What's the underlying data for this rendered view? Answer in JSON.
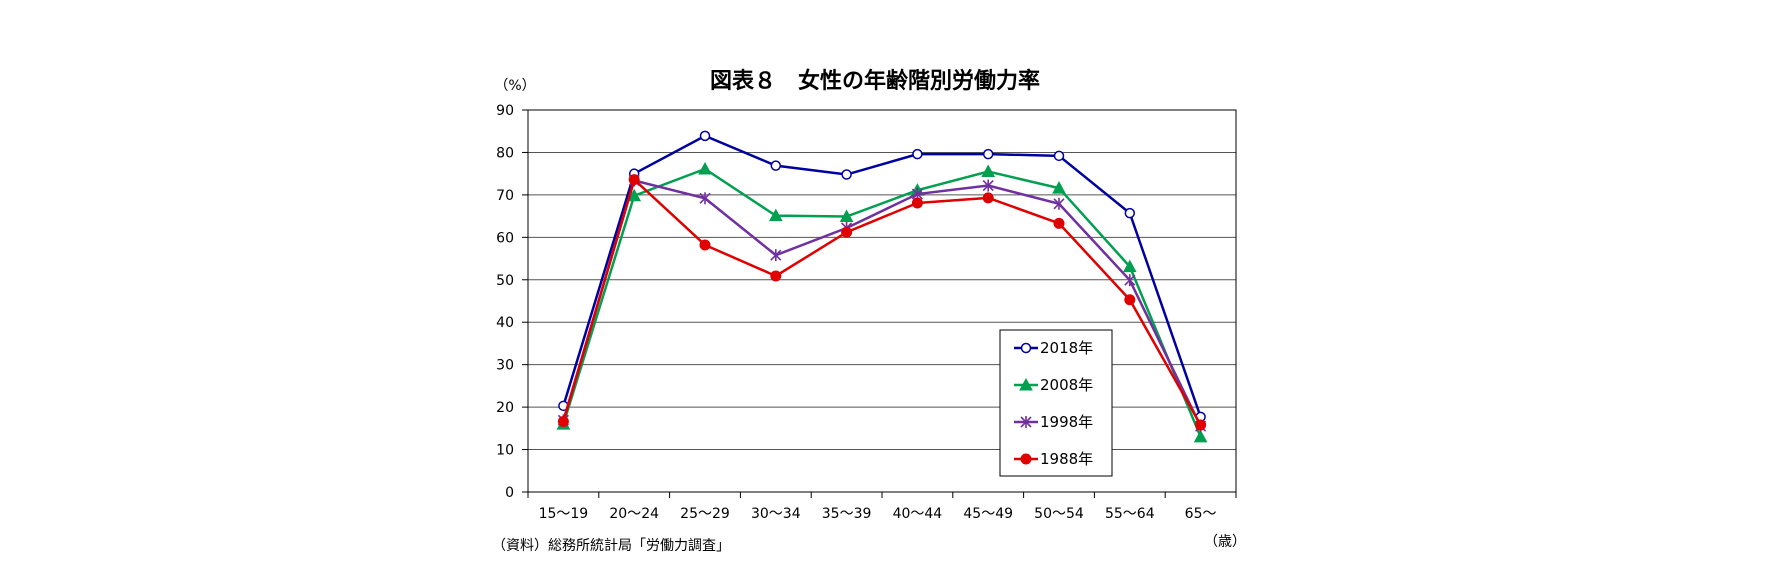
{
  "chart_data": {
    "type": "line",
    "title": "図表８　女性の年齢階別労働力率",
    "y_unit": "（%）",
    "x_unit": "（歳）",
    "source": "（資料）総務所統計局「労働力調査」",
    "categories": [
      "15～19",
      "20～24",
      "25～29",
      "30～34",
      "35～39",
      "40～44",
      "45～49",
      "50～54",
      "55～64",
      "65～"
    ],
    "ylim": [
      0,
      90
    ],
    "yticks": [
      0,
      10,
      20,
      30,
      40,
      50,
      60,
      70,
      80,
      90
    ],
    "grid": true,
    "legend_position": "lower-right inside plot",
    "series": [
      {
        "name": "2018年",
        "color": "#0000A0",
        "marker": "open-circle",
        "values": [
          20.3,
          75.0,
          83.9,
          76.9,
          74.8,
          79.6,
          79.6,
          79.2,
          65.7,
          17.7
        ]
      },
      {
        "name": "2008年",
        "color": "#00A050",
        "marker": "triangle",
        "values": [
          16.0,
          69.8,
          76.1,
          65.1,
          64.9,
          71.1,
          75.5,
          71.6,
          53.1,
          13.0
        ]
      },
      {
        "name": "1998年",
        "color": "#7030A0",
        "marker": "star",
        "values": [
          16.9,
          73.4,
          69.2,
          55.8,
          62.2,
          70.2,
          72.2,
          67.9,
          49.9,
          15.5
        ]
      },
      {
        "name": "1988年",
        "color": "#E00000",
        "marker": "filled-circle",
        "values": [
          16.6,
          73.6,
          58.2,
          50.9,
          61.2,
          68.1,
          69.3,
          63.3,
          45.3,
          15.8
        ]
      }
    ]
  }
}
